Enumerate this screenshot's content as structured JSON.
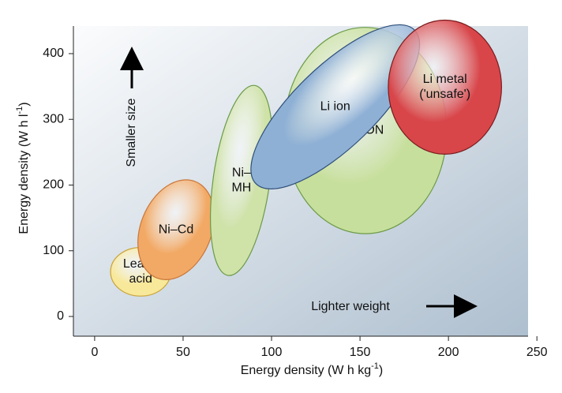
{
  "chart_data": {
    "type": "scatter",
    "xlabel": "Energy density (W h kg",
    "xlabel_sup": "-1",
    "xlabel_end": ")",
    "ylabel": "Energy density (W h l",
    "ylabel_sup": "-1",
    "ylabel_end": ")",
    "xlim": [
      -12,
      245
    ],
    "ylim": [
      -30,
      442
    ],
    "xticks": [
      0,
      50,
      100,
      150,
      200,
      250
    ],
    "yticks": [
      0,
      100,
      200,
      300,
      400
    ],
    "grid": false,
    "background": {
      "from": "#fbfcfd",
      "to": "#aebfcf"
    },
    "regions": [
      {
        "name": "Lead-acid",
        "label_lines": [
          "Lead–",
          "acid"
        ],
        "cx": 26,
        "cy": 68,
        "rx": 17,
        "ry": 37,
        "rotate": 0,
        "fill": "#f8e89a",
        "stroke": "#c9a43a"
      },
      {
        "name": "Ni-Cd",
        "label_lines": [
          "Ni–Cd"
        ],
        "cx": 46,
        "cy": 132,
        "rx": 20,
        "ry": 79,
        "rotate": 22,
        "fill": "#f2a965",
        "stroke": "#c9763a"
      },
      {
        "name": "Ni-MH",
        "label_lines": [
          "Ni–",
          "MH"
        ],
        "cx": 83,
        "cy": 207,
        "rx": 16,
        "ry": 146,
        "rotate": 8,
        "fill": "#cfe2a8",
        "stroke": "#6b9a48"
      },
      {
        "name": "PLiON",
        "label_lines": [
          "PLiON"
        ],
        "cx": 153,
        "cy": 283,
        "rx": 46,
        "ry": 157,
        "rotate": 0,
        "fill": "#c7df9c",
        "stroke": "#6b9a48"
      },
      {
        "name": "Li ion",
        "label_lines": [
          "Li ion"
        ],
        "cx": 136,
        "cy": 319,
        "rx": 23,
        "ry": 168,
        "rotate": 46,
        "fill": "#8fb0d5",
        "stroke": "#2f4f7a"
      },
      {
        "name": "Li metal",
        "label_lines": [
          "Li metal",
          "('unsafe')"
        ],
        "cx": 198,
        "cy": 349,
        "rx": 32,
        "ry": 102,
        "rotate": 0,
        "fill": "#d8464a",
        "stroke": "#7a1c1e"
      }
    ],
    "annotations": [
      {
        "text": "Smaller size",
        "direction": "up"
      },
      {
        "text": "Lighter weight",
        "direction": "right"
      }
    ]
  }
}
